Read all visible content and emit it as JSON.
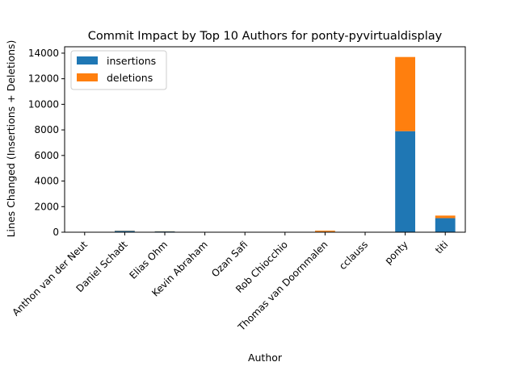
{
  "chart_data": {
    "type": "bar",
    "stacked": true,
    "title": "Commit Impact by Top 10 Authors for ponty-pyvirtualdisplay",
    "xlabel": "Author",
    "ylabel": "Lines Changed (Insertions + Deletions)",
    "ylim": [
      0,
      14500
    ],
    "yticks": [
      0,
      2000,
      4000,
      6000,
      8000,
      10000,
      12000,
      14000
    ],
    "categories": [
      "Anthon van der Neut",
      "Daniel Schadt",
      "Elias Ohm",
      "Kevin Abraham",
      "Ozan Safi",
      "Rob Chiocchio",
      "Thomas van Doornmalen",
      "cclauss",
      "ponty",
      "titi"
    ],
    "series": [
      {
        "name": "insertions",
        "color": "#1f77b4",
        "values": [
          5,
          110,
          60,
          3,
          2,
          2,
          40,
          5,
          7900,
          1100
        ]
      },
      {
        "name": "deletions",
        "color": "#ff7f0e",
        "values": [
          3,
          20,
          15,
          2,
          1,
          1,
          80,
          4,
          5800,
          200
        ]
      }
    ],
    "legend": "top-left",
    "grid": false
  }
}
